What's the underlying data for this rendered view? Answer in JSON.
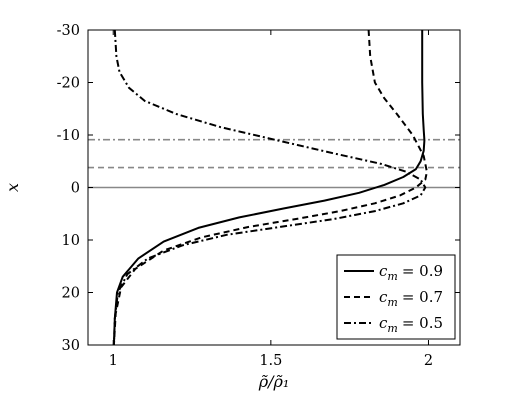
{
  "chart_data": {
    "type": "line",
    "xlabel": "ρ̃/ρ̃₁",
    "ylabel": "x",
    "xlim": [
      0.92,
      2.1
    ],
    "ylim": [
      -30,
      30
    ],
    "y_inverted": true,
    "grid": false,
    "legend_position": "bottom-right",
    "x_ticks": [
      1,
      1.5,
      2
    ],
    "x_tick_labels": [
      "1",
      "1.5",
      "2"
    ],
    "y_ticks": [
      -30,
      -20,
      -10,
      0,
      10,
      20,
      30
    ],
    "y_tick_labels": [
      "-30",
      "-20",
      "-10",
      "0",
      "10",
      "20",
      "30"
    ],
    "reference_lines": [
      {
        "y": 0,
        "style": "solid",
        "color": "#888888"
      },
      {
        "y": -3.8,
        "style": "dashed",
        "color": "#888888"
      },
      {
        "y": -9.1,
        "style": "dashdot",
        "color": "#888888"
      }
    ],
    "series": [
      {
        "name": "c_m = 0.9",
        "legend_var": "c",
        "legend_sub": "m",
        "legend_value": "= 0.9",
        "style": "solid",
        "points": [
          [
            1.98,
            -30
          ],
          [
            1.98,
            -20
          ],
          [
            1.982,
            -14
          ],
          [
            1.985,
            -11
          ],
          [
            1.987,
            -9
          ],
          [
            1.985,
            -7
          ],
          [
            1.975,
            -5
          ],
          [
            1.96,
            -3.5
          ],
          [
            1.92,
            -2
          ],
          [
            1.86,
            -0.5
          ],
          [
            1.78,
            1
          ],
          [
            1.67,
            2.5
          ],
          [
            1.54,
            4
          ],
          [
            1.4,
            5.7
          ],
          [
            1.27,
            7.7
          ],
          [
            1.16,
            10.3
          ],
          [
            1.08,
            13.5
          ],
          [
            1.03,
            17
          ],
          [
            1.012,
            20
          ],
          [
            1.005,
            25
          ],
          [
            1.002,
            30
          ]
        ]
      },
      {
        "name": "c_m = 0.7",
        "legend_var": "c",
        "legend_sub": "m",
        "legend_value": "= 0.7",
        "style": "dashed",
        "points": [
          [
            1.81,
            -30
          ],
          [
            1.815,
            -25
          ],
          [
            1.83,
            -20
          ],
          [
            1.86,
            -17
          ],
          [
            1.9,
            -14
          ],
          [
            1.95,
            -10
          ],
          [
            1.985,
            -6
          ],
          [
            1.995,
            -3
          ],
          [
            1.99,
            -1.5
          ],
          [
            1.96,
            0
          ],
          [
            1.91,
            1.5
          ],
          [
            1.83,
            3
          ],
          [
            1.72,
            4.5
          ],
          [
            1.58,
            6
          ],
          [
            1.43,
            7.5
          ],
          [
            1.28,
            9.5
          ],
          [
            1.16,
            12
          ],
          [
            1.07,
            15.5
          ],
          [
            1.025,
            19
          ],
          [
            1.008,
            24
          ],
          [
            1.002,
            30
          ]
        ]
      },
      {
        "name": "c_m = 0.5",
        "legend_var": "c",
        "legend_sub": "m",
        "legend_value": "= 0.5",
        "style": "dashdot",
        "points": [
          [
            1.005,
            -30
          ],
          [
            1.01,
            -25
          ],
          [
            1.02,
            -22
          ],
          [
            1.05,
            -19
          ],
          [
            1.1,
            -16.5
          ],
          [
            1.2,
            -14
          ],
          [
            1.34,
            -11.5
          ],
          [
            1.52,
            -9
          ],
          [
            1.7,
            -6.5
          ],
          [
            1.85,
            -4.5
          ],
          [
            1.93,
            -3
          ],
          [
            1.975,
            -1.5
          ],
          [
            1.99,
            0
          ],
          [
            1.975,
            1.5
          ],
          [
            1.92,
            3
          ],
          [
            1.83,
            4.5
          ],
          [
            1.7,
            6
          ],
          [
            1.53,
            7.5
          ],
          [
            1.36,
            9
          ],
          [
            1.22,
            11
          ],
          [
            1.11,
            13.5
          ],
          [
            1.045,
            16.5
          ],
          [
            1.015,
            20
          ],
          [
            1.005,
            25
          ],
          [
            1.002,
            30
          ]
        ]
      }
    ]
  }
}
